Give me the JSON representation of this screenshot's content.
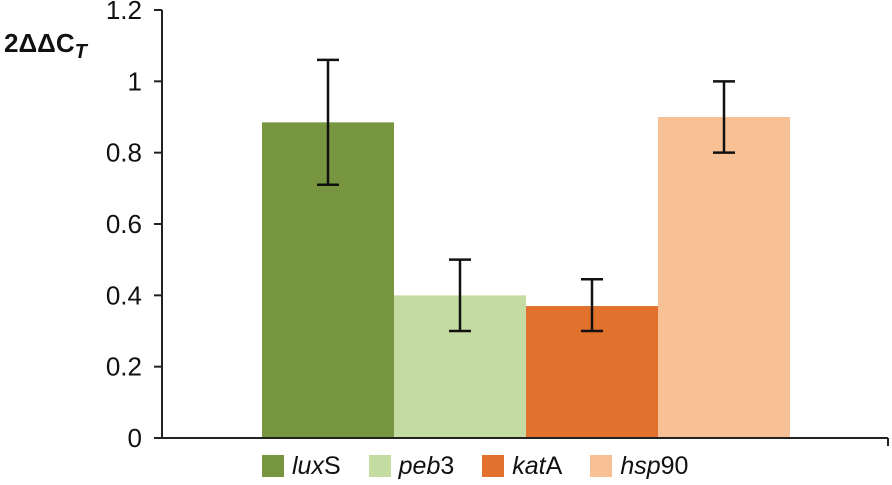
{
  "chart_data": {
    "type": "bar",
    "ylabel_main": "2ΔΔC",
    "ylabel_sub": "T",
    "categories": [
      {
        "italic": "lux",
        "plain": "S"
      },
      {
        "italic": "peb",
        "plain": "3"
      },
      {
        "italic": "kat",
        "plain": "A"
      },
      {
        "italic": "hsp",
        "plain": "90"
      }
    ],
    "values": [
      0.885,
      0.4,
      0.37,
      0.9
    ],
    "error_low": [
      0.71,
      0.3,
      0.3,
      0.8
    ],
    "error_high": [
      1.06,
      0.5,
      0.445,
      1.0
    ],
    "colors": [
      "#77963f",
      "#c4dca1",
      "#e2712d",
      "#f8c195"
    ],
    "ylim": [
      0,
      1.2
    ],
    "yticks": [
      0,
      0.2,
      0.4,
      0.6,
      0.8,
      1,
      1.2
    ],
    "ytick_labels": [
      "0",
      "0.2",
      "0.4",
      "0.6",
      "0.8",
      "1",
      "1.2"
    ],
    "grid": false,
    "legend_position": "bottom"
  }
}
